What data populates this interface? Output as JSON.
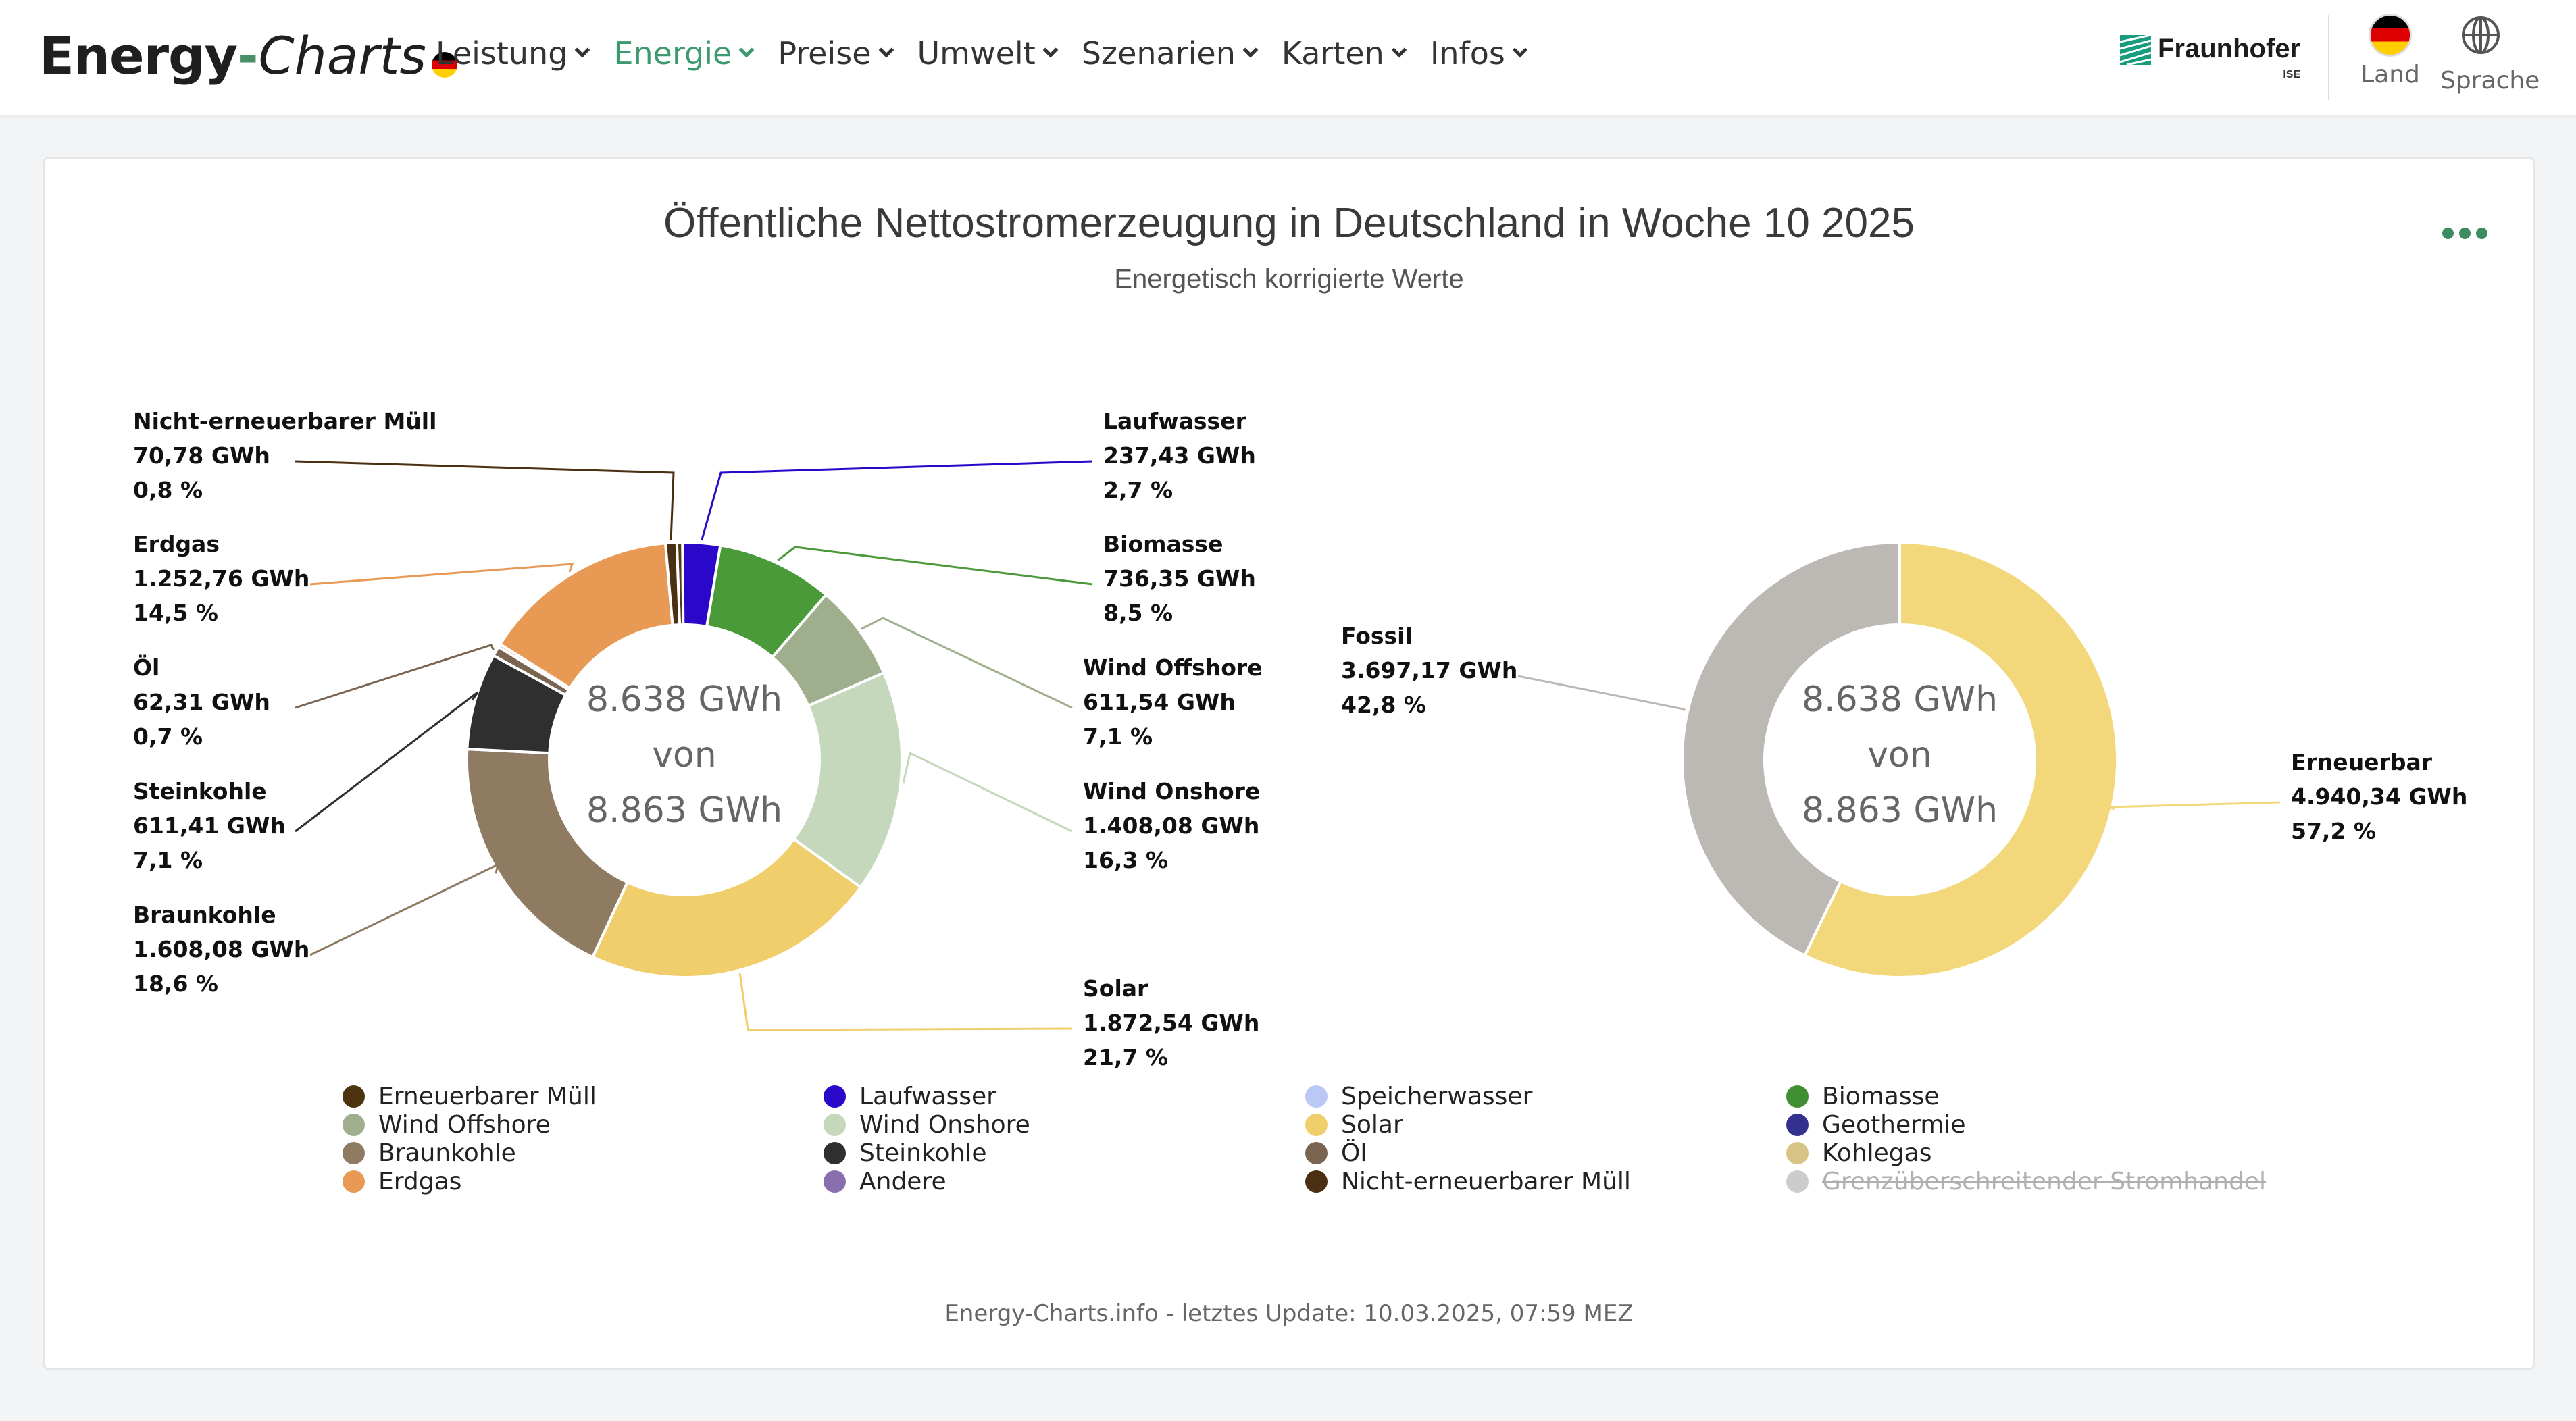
{
  "header": {
    "logo": {
      "part1": "Energy",
      "dash": "-",
      "part2": "Charts",
      "flag_icon": "germany-flag-icon"
    },
    "nav": [
      {
        "label": "Leistung",
        "active": false
      },
      {
        "label": "Energie",
        "active": true
      },
      {
        "label": "Preise",
        "active": false
      },
      {
        "label": "Umwelt",
        "active": false
      },
      {
        "label": "Szenarien",
        "active": false
      },
      {
        "label": "Karten",
        "active": false
      },
      {
        "label": "Infos",
        "active": false
      }
    ],
    "partner": {
      "name": "Fraunhofer",
      "sub": "ISE"
    },
    "land_label": "Land",
    "sprache_label": "Sprache"
  },
  "card": {
    "more_icon": "more-dots-icon",
    "footer": "Energy-Charts.info - letztes Update: 10.03.2025, 07:59 MEZ"
  },
  "chart_data": [
    {
      "type": "pie",
      "title": "Öffentliche Nettostromerzeugung in Deutschland in Woche 10 2025",
      "subtitle": "Energetisch korrigierte Werte",
      "center_text": [
        "8.638 GWh",
        "von",
        "8.863 GWh"
      ],
      "unit": "GWh",
      "slices": [
        {
          "name": "Erneuerbarer Müll",
          "value": 36.0,
          "percent": null,
          "color": "#5a3a14",
          "labeled": false
        },
        {
          "name": "Laufwasser",
          "value": 237.43,
          "value_text": "237,43 GWh",
          "percent": 2.7,
          "percent_text": "2,7 %",
          "color": "#2a07c9",
          "labeled": true
        },
        {
          "name": "Biomasse",
          "value": 736.35,
          "value_text": "736,35 GWh",
          "percent": 8.5,
          "percent_text": "8,5 %",
          "color": "#4a9a3a",
          "labeled": true
        },
        {
          "name": "Wind Offshore",
          "value": 611.54,
          "value_text": "611,54 GWh",
          "percent": 7.1,
          "percent_text": "7,1 %",
          "color": "#9faf8e",
          "labeled": true
        },
        {
          "name": "Wind Onshore",
          "value": 1408.08,
          "value_text": "1.408,08 GWh",
          "percent": 16.3,
          "percent_text": "16,3 %",
          "color": "#c5d8bb",
          "labeled": true
        },
        {
          "name": "Solar",
          "value": 1872.54,
          "value_text": "1.872,54 GWh",
          "percent": 21.7,
          "percent_text": "21,7 %",
          "color": "#f0ce6c",
          "labeled": true
        },
        {
          "name": "Braunkohle",
          "value": 1608.08,
          "value_text": "1.608,08 GWh",
          "percent": 18.6,
          "percent_text": "18,6 %",
          "color": "#8e7b62",
          "labeled": true
        },
        {
          "name": "Steinkohle",
          "value": 611.41,
          "value_text": "611,41 GWh",
          "percent": 7.1,
          "percent_text": "7,1 %",
          "color": "#2f2f2f",
          "labeled": true
        },
        {
          "name": "Öl",
          "value": 62.31,
          "value_text": "62,31 GWh",
          "percent": 0.7,
          "percent_text": "0,7 %",
          "color": "#7a6552",
          "labeled": true
        },
        {
          "name": "Andere",
          "value": 20.0,
          "percent": null,
          "color": "#d4b06a",
          "labeled": false
        },
        {
          "name": "Erdgas",
          "value": 1252.76,
          "value_text": "1.252,76 GWh",
          "percent": 14.5,
          "percent_text": "14,5 %",
          "color": "#e89a55",
          "labeled": true
        },
        {
          "name": "Nicht-erneuerbarer Müll",
          "value": 70.78,
          "value_text": "70,78 GWh",
          "percent": 0.8,
          "percent_text": "0,8 %",
          "color": "#4a2f12",
          "labeled": true
        }
      ]
    },
    {
      "type": "pie",
      "center_text": [
        "8.638 GWh",
        "von",
        "8.863 GWh"
      ],
      "unit": "GWh",
      "slices": [
        {
          "name": "Erneuerbar",
          "value": 4940.34,
          "value_text": "4.940,34 GWh",
          "percent": 57.2,
          "percent_text": "57,2 %",
          "color": "#f2d87a",
          "labeled": true
        },
        {
          "name": "Fossil",
          "value": 3697.17,
          "value_text": "3.697,17 GWh",
          "percent": 42.8,
          "percent_text": "42,8 %",
          "color": "#bcb8b4",
          "labeled": true
        }
      ]
    }
  ],
  "legend": [
    {
      "label": "Erneuerbarer Müll",
      "color": "#4d3310",
      "enabled": true
    },
    {
      "label": "Laufwasser",
      "color": "#2a07c9",
      "enabled": true
    },
    {
      "label": "Speicherwasser",
      "color": "#b9c8f5",
      "enabled": true
    },
    {
      "label": "Biomasse",
      "color": "#3f8f32",
      "enabled": true
    },
    {
      "label": "Wind Offshore",
      "color": "#9faf8e",
      "enabled": true
    },
    {
      "label": "Wind Onshore",
      "color": "#c5d8bb",
      "enabled": true
    },
    {
      "label": "Solar",
      "color": "#f0ce6c",
      "enabled": true
    },
    {
      "label": "Geothermie",
      "color": "#33308e",
      "enabled": true
    },
    {
      "label": "Braunkohle",
      "color": "#8e7b62",
      "enabled": true
    },
    {
      "label": "Steinkohle",
      "color": "#2f2f2f",
      "enabled": true
    },
    {
      "label": "Öl",
      "color": "#7a6552",
      "enabled": true
    },
    {
      "label": "Kohlegas",
      "color": "#d9c488",
      "enabled": true
    },
    {
      "label": "Erdgas",
      "color": "#e89a55",
      "enabled": true
    },
    {
      "label": "Andere",
      "color": "#8a6fb0",
      "enabled": true
    },
    {
      "label": "Nicht-erneuerbarer Müll",
      "color": "#4a2f12",
      "enabled": true
    },
    {
      "label": "Grenzüberschreitender Stromhandel",
      "color": "#cccccc",
      "enabled": false
    }
  ]
}
